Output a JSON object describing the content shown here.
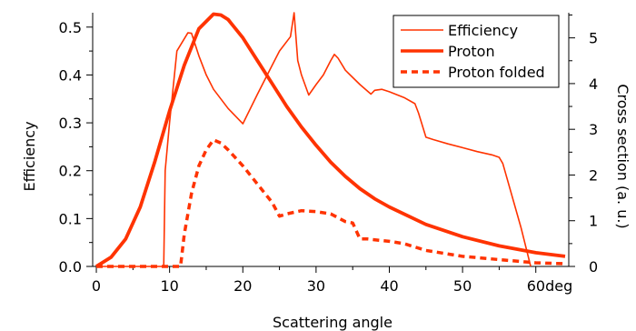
{
  "chart_data": {
    "type": "line",
    "xlabel": "Scattering angle",
    "ylabel_left": "Efficiency",
    "ylabel_right": "Cross section (a. u.)",
    "x_unit_label": "deg",
    "xlim": [
      -0.5,
      64.5
    ],
    "ylim_left": [
      0,
      0.53
    ],
    "ylim_right": [
      0,
      5.55
    ],
    "x_ticks": [
      "0",
      "10",
      "20",
      "30",
      "40",
      "50",
      "60deg"
    ],
    "y_left_ticks": [
      "0.0",
      "0.1",
      "0.2",
      "0.3",
      "0.4",
      "0.5"
    ],
    "y_right_ticks": [
      "0",
      "1",
      "2",
      "3",
      "4",
      "5"
    ],
    "grid": false,
    "legend_position": "top-right",
    "color": "#ff3300",
    "series": [
      {
        "name": "Efficiency",
        "axis": "left",
        "style": "thin",
        "x": [
          0,
          9.2,
          9.4,
          10,
          11,
          12.5,
          13,
          14,
          15,
          16,
          18,
          20,
          22,
          24,
          25,
          26.5,
          27,
          27.5,
          28,
          29,
          30,
          31,
          32,
          32.5,
          33,
          34,
          36,
          37.5,
          38,
          39,
          40,
          42,
          43.5,
          44,
          45,
          46,
          48,
          50,
          52,
          54,
          55,
          55.5,
          58,
          59.3
        ],
        "y": [
          0,
          0,
          0.2,
          0.3,
          0.45,
          0.488,
          0.487,
          0.44,
          0.4,
          0.37,
          0.33,
          0.298,
          0.36,
          0.42,
          0.45,
          0.48,
          0.53,
          0.43,
          0.4,
          0.358,
          0.38,
          0.4,
          0.43,
          0.443,
          0.435,
          0.41,
          0.38,
          0.36,
          0.368,
          0.37,
          0.365,
          0.353,
          0.34,
          0.32,
          0.27,
          0.265,
          0.256,
          0.248,
          0.24,
          0.233,
          0.228,
          0.215,
          0.08,
          0
        ]
      },
      {
        "name": "Proton",
        "axis": "right",
        "style": "thick",
        "x": [
          0,
          2,
          4,
          6,
          8,
          10,
          12,
          14,
          16,
          17,
          18,
          20,
          22,
          24,
          26,
          28,
          30,
          32,
          34,
          36,
          38,
          40,
          45,
          50,
          55,
          60,
          64
        ],
        "y": [
          0,
          0.2,
          0.6,
          1.3,
          2.3,
          3.4,
          4.4,
          5.2,
          5.52,
          5.5,
          5.4,
          5.0,
          4.5,
          4.0,
          3.5,
          3.05,
          2.65,
          2.28,
          1.97,
          1.7,
          1.48,
          1.3,
          0.92,
          0.65,
          0.45,
          0.3,
          0.22
        ]
      },
      {
        "name": "Proton folded",
        "axis": "right",
        "style": "dashed",
        "x": [
          0,
          11.5,
          12,
          13,
          14,
          15,
          16,
          17,
          18,
          20,
          22,
          24,
          25,
          26,
          28,
          30,
          32,
          34,
          35,
          36,
          37,
          40,
          42,
          45,
          50,
          55,
          60,
          64
        ],
        "y": [
          0,
          0,
          0.7,
          1.6,
          2.2,
          2.55,
          2.77,
          2.7,
          2.55,
          2.2,
          1.8,
          1.4,
          1.1,
          1.15,
          1.22,
          1.2,
          1.15,
          0.98,
          0.95,
          0.6,
          0.6,
          0.55,
          0.5,
          0.35,
          0.22,
          0.15,
          0.08,
          0.06
        ]
      }
    ]
  }
}
